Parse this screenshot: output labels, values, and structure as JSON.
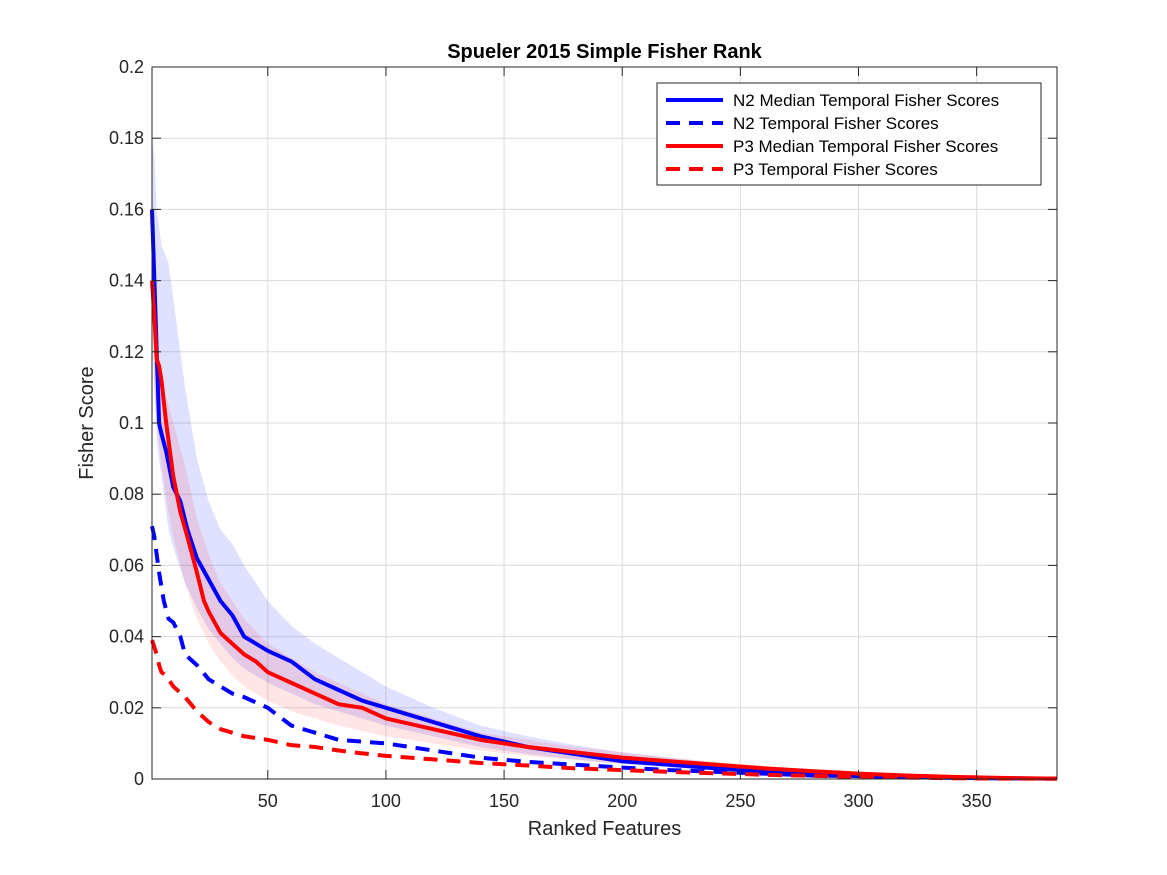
{
  "chart_data": {
    "type": "line",
    "title": "Spueler 2015 Simple Fisher Rank",
    "xlabel": "Ranked Features",
    "ylabel": "Fisher Score",
    "xlim": [
      1,
      384
    ],
    "ylim": [
      0,
      0.2
    ],
    "x_ticks": [
      50,
      100,
      150,
      200,
      250,
      300,
      350
    ],
    "x_tick_labels": [
      "50",
      "100",
      "150",
      "200",
      "250",
      "300",
      "350"
    ],
    "y_ticks": [
      0,
      0.02,
      0.04,
      0.06,
      0.08,
      0.1,
      0.12,
      0.14,
      0.16,
      0.18,
      0.2
    ],
    "y_tick_labels": [
      "0",
      "0.02",
      "0.04",
      "0.06",
      "0.08",
      "0.1",
      "0.12",
      "0.14",
      "0.16",
      "0.18",
      "0.2"
    ],
    "grid": true,
    "legend_position": "top-right",
    "series": [
      {
        "name": "N2 Median Temporal Fisher Scores",
        "color": "#0000ff",
        "style": "solid",
        "x": [
          1,
          2,
          3,
          4,
          5,
          7,
          10,
          13,
          16,
          20,
          25,
          30,
          35,
          40,
          45,
          50,
          60,
          70,
          80,
          90,
          100,
          120,
          140,
          160,
          180,
          200,
          220,
          240,
          260,
          280,
          300,
          320,
          340,
          360,
          384
        ],
        "y": [
          0.16,
          0.14,
          0.12,
          0.1,
          0.097,
          0.092,
          0.082,
          0.078,
          0.07,
          0.062,
          0.056,
          0.05,
          0.046,
          0.04,
          0.038,
          0.036,
          0.033,
          0.028,
          0.025,
          0.022,
          0.02,
          0.016,
          0.012,
          0.009,
          0.007,
          0.005,
          0.004,
          0.003,
          0.002,
          0.0015,
          0.001,
          0.0006,
          0.0004,
          0.0002,
          0.0001
        ]
      },
      {
        "name": "N2 Temporal Fisher Scores",
        "color": "#0000ff",
        "style": "dashed",
        "x": [
          1,
          2,
          3,
          4,
          5,
          6,
          8,
          10,
          13,
          15,
          20,
          25,
          30,
          35,
          40,
          50,
          60,
          70,
          80,
          90,
          100,
          120,
          140,
          160,
          180,
          200,
          220,
          240,
          260,
          280,
          300,
          320,
          340,
          360,
          384
        ],
        "y": [
          0.071,
          0.068,
          0.063,
          0.058,
          0.054,
          0.05,
          0.045,
          0.044,
          0.04,
          0.035,
          0.032,
          0.028,
          0.026,
          0.024,
          0.023,
          0.02,
          0.015,
          0.013,
          0.011,
          0.0105,
          0.01,
          0.008,
          0.006,
          0.0048,
          0.004,
          0.0032,
          0.0025,
          0.002,
          0.0015,
          0.001,
          0.0008,
          0.0005,
          0.0003,
          0.0002,
          0.0001
        ]
      },
      {
        "name": "P3 Median Temporal Fisher Scores",
        "color": "#ff0000",
        "style": "solid",
        "x": [
          1,
          2,
          3,
          4,
          5,
          7,
          10,
          13,
          16,
          20,
          23,
          25,
          30,
          35,
          40,
          45,
          50,
          60,
          70,
          80,
          90,
          100,
          120,
          140,
          160,
          180,
          200,
          220,
          240,
          260,
          280,
          300,
          320,
          340,
          360,
          384
        ],
        "y": [
          0.14,
          0.13,
          0.118,
          0.116,
          0.112,
          0.1,
          0.085,
          0.075,
          0.068,
          0.058,
          0.05,
          0.047,
          0.041,
          0.038,
          0.035,
          0.033,
          0.03,
          0.027,
          0.024,
          0.021,
          0.02,
          0.017,
          0.014,
          0.011,
          0.009,
          0.0075,
          0.006,
          0.005,
          0.004,
          0.003,
          0.0022,
          0.0015,
          0.001,
          0.0006,
          0.0003,
          0.0001
        ]
      },
      {
        "name": "P3 Temporal Fisher Scores",
        "color": "#ff0000",
        "style": "dashed",
        "x": [
          1,
          2,
          3,
          4,
          5,
          7,
          10,
          15,
          20,
          25,
          30,
          35,
          40,
          50,
          60,
          70,
          80,
          90,
          100,
          120,
          140,
          160,
          180,
          200,
          220,
          240,
          260,
          280,
          300,
          320,
          340,
          360,
          384
        ],
        "y": [
          0.039,
          0.037,
          0.035,
          0.032,
          0.03,
          0.029,
          0.026,
          0.023,
          0.019,
          0.016,
          0.014,
          0.013,
          0.012,
          0.011,
          0.0095,
          0.009,
          0.008,
          0.0072,
          0.0065,
          0.0055,
          0.0045,
          0.0038,
          0.003,
          0.0025,
          0.002,
          0.0016,
          0.0012,
          0.0009,
          0.0006,
          0.0004,
          0.0002,
          0.0001,
          0.0001
        ]
      }
    ],
    "bands": [
      {
        "color": "#0000ff",
        "opacity": 0.12,
        "x": [
          1,
          2,
          3,
          5,
          8,
          10,
          15,
          20,
          25,
          30,
          35,
          40,
          50,
          60,
          70,
          80,
          90,
          100,
          120,
          140,
          160,
          180,
          200,
          220,
          240,
          260,
          280,
          300,
          320,
          340,
          360,
          384
        ],
        "upper": [
          0.18,
          0.175,
          0.16,
          0.15,
          0.145,
          0.135,
          0.11,
          0.09,
          0.078,
          0.07,
          0.066,
          0.06,
          0.05,
          0.043,
          0.038,
          0.034,
          0.03,
          0.026,
          0.02,
          0.015,
          0.012,
          0.0095,
          0.0075,
          0.006,
          0.0045,
          0.0032,
          0.0023,
          0.0016,
          0.001,
          0.0006,
          0.0003,
          0.0002
        ],
        "lower": [
          0.14,
          0.11,
          0.095,
          0.085,
          0.07,
          0.065,
          0.055,
          0.048,
          0.042,
          0.038,
          0.034,
          0.031,
          0.027,
          0.024,
          0.021,
          0.019,
          0.017,
          0.015,
          0.012,
          0.009,
          0.007,
          0.0055,
          0.0042,
          0.0032,
          0.0024,
          0.0017,
          0.0012,
          0.0008,
          0.0005,
          0.0003,
          0.0001,
          0.0
        ]
      },
      {
        "color": "#ff0000",
        "opacity": 0.1,
        "x": [
          1,
          2,
          3,
          5,
          8,
          10,
          15,
          20,
          25,
          30,
          35,
          40,
          50,
          60,
          70,
          80,
          90,
          100,
          120,
          140,
          160,
          180,
          200,
          220,
          240,
          260,
          280,
          300,
          320,
          340,
          360,
          384
        ],
        "upper": [
          0.14,
          0.128,
          0.12,
          0.112,
          0.105,
          0.1,
          0.088,
          0.073,
          0.063,
          0.055,
          0.05,
          0.045,
          0.038,
          0.034,
          0.03,
          0.027,
          0.024,
          0.021,
          0.017,
          0.013,
          0.011,
          0.009,
          0.0075,
          0.006,
          0.0048,
          0.0037,
          0.0028,
          0.002,
          0.0013,
          0.0008,
          0.0004,
          0.0002
        ],
        "lower": [
          0.13,
          0.11,
          0.1,
          0.088,
          0.075,
          0.068,
          0.055,
          0.045,
          0.038,
          0.033,
          0.029,
          0.026,
          0.022,
          0.019,
          0.017,
          0.015,
          0.0135,
          0.012,
          0.01,
          0.008,
          0.0065,
          0.0053,
          0.0043,
          0.0035,
          0.0027,
          0.0021,
          0.0015,
          0.001,
          0.0006,
          0.0003,
          0.0001,
          0.0
        ]
      }
    ]
  }
}
